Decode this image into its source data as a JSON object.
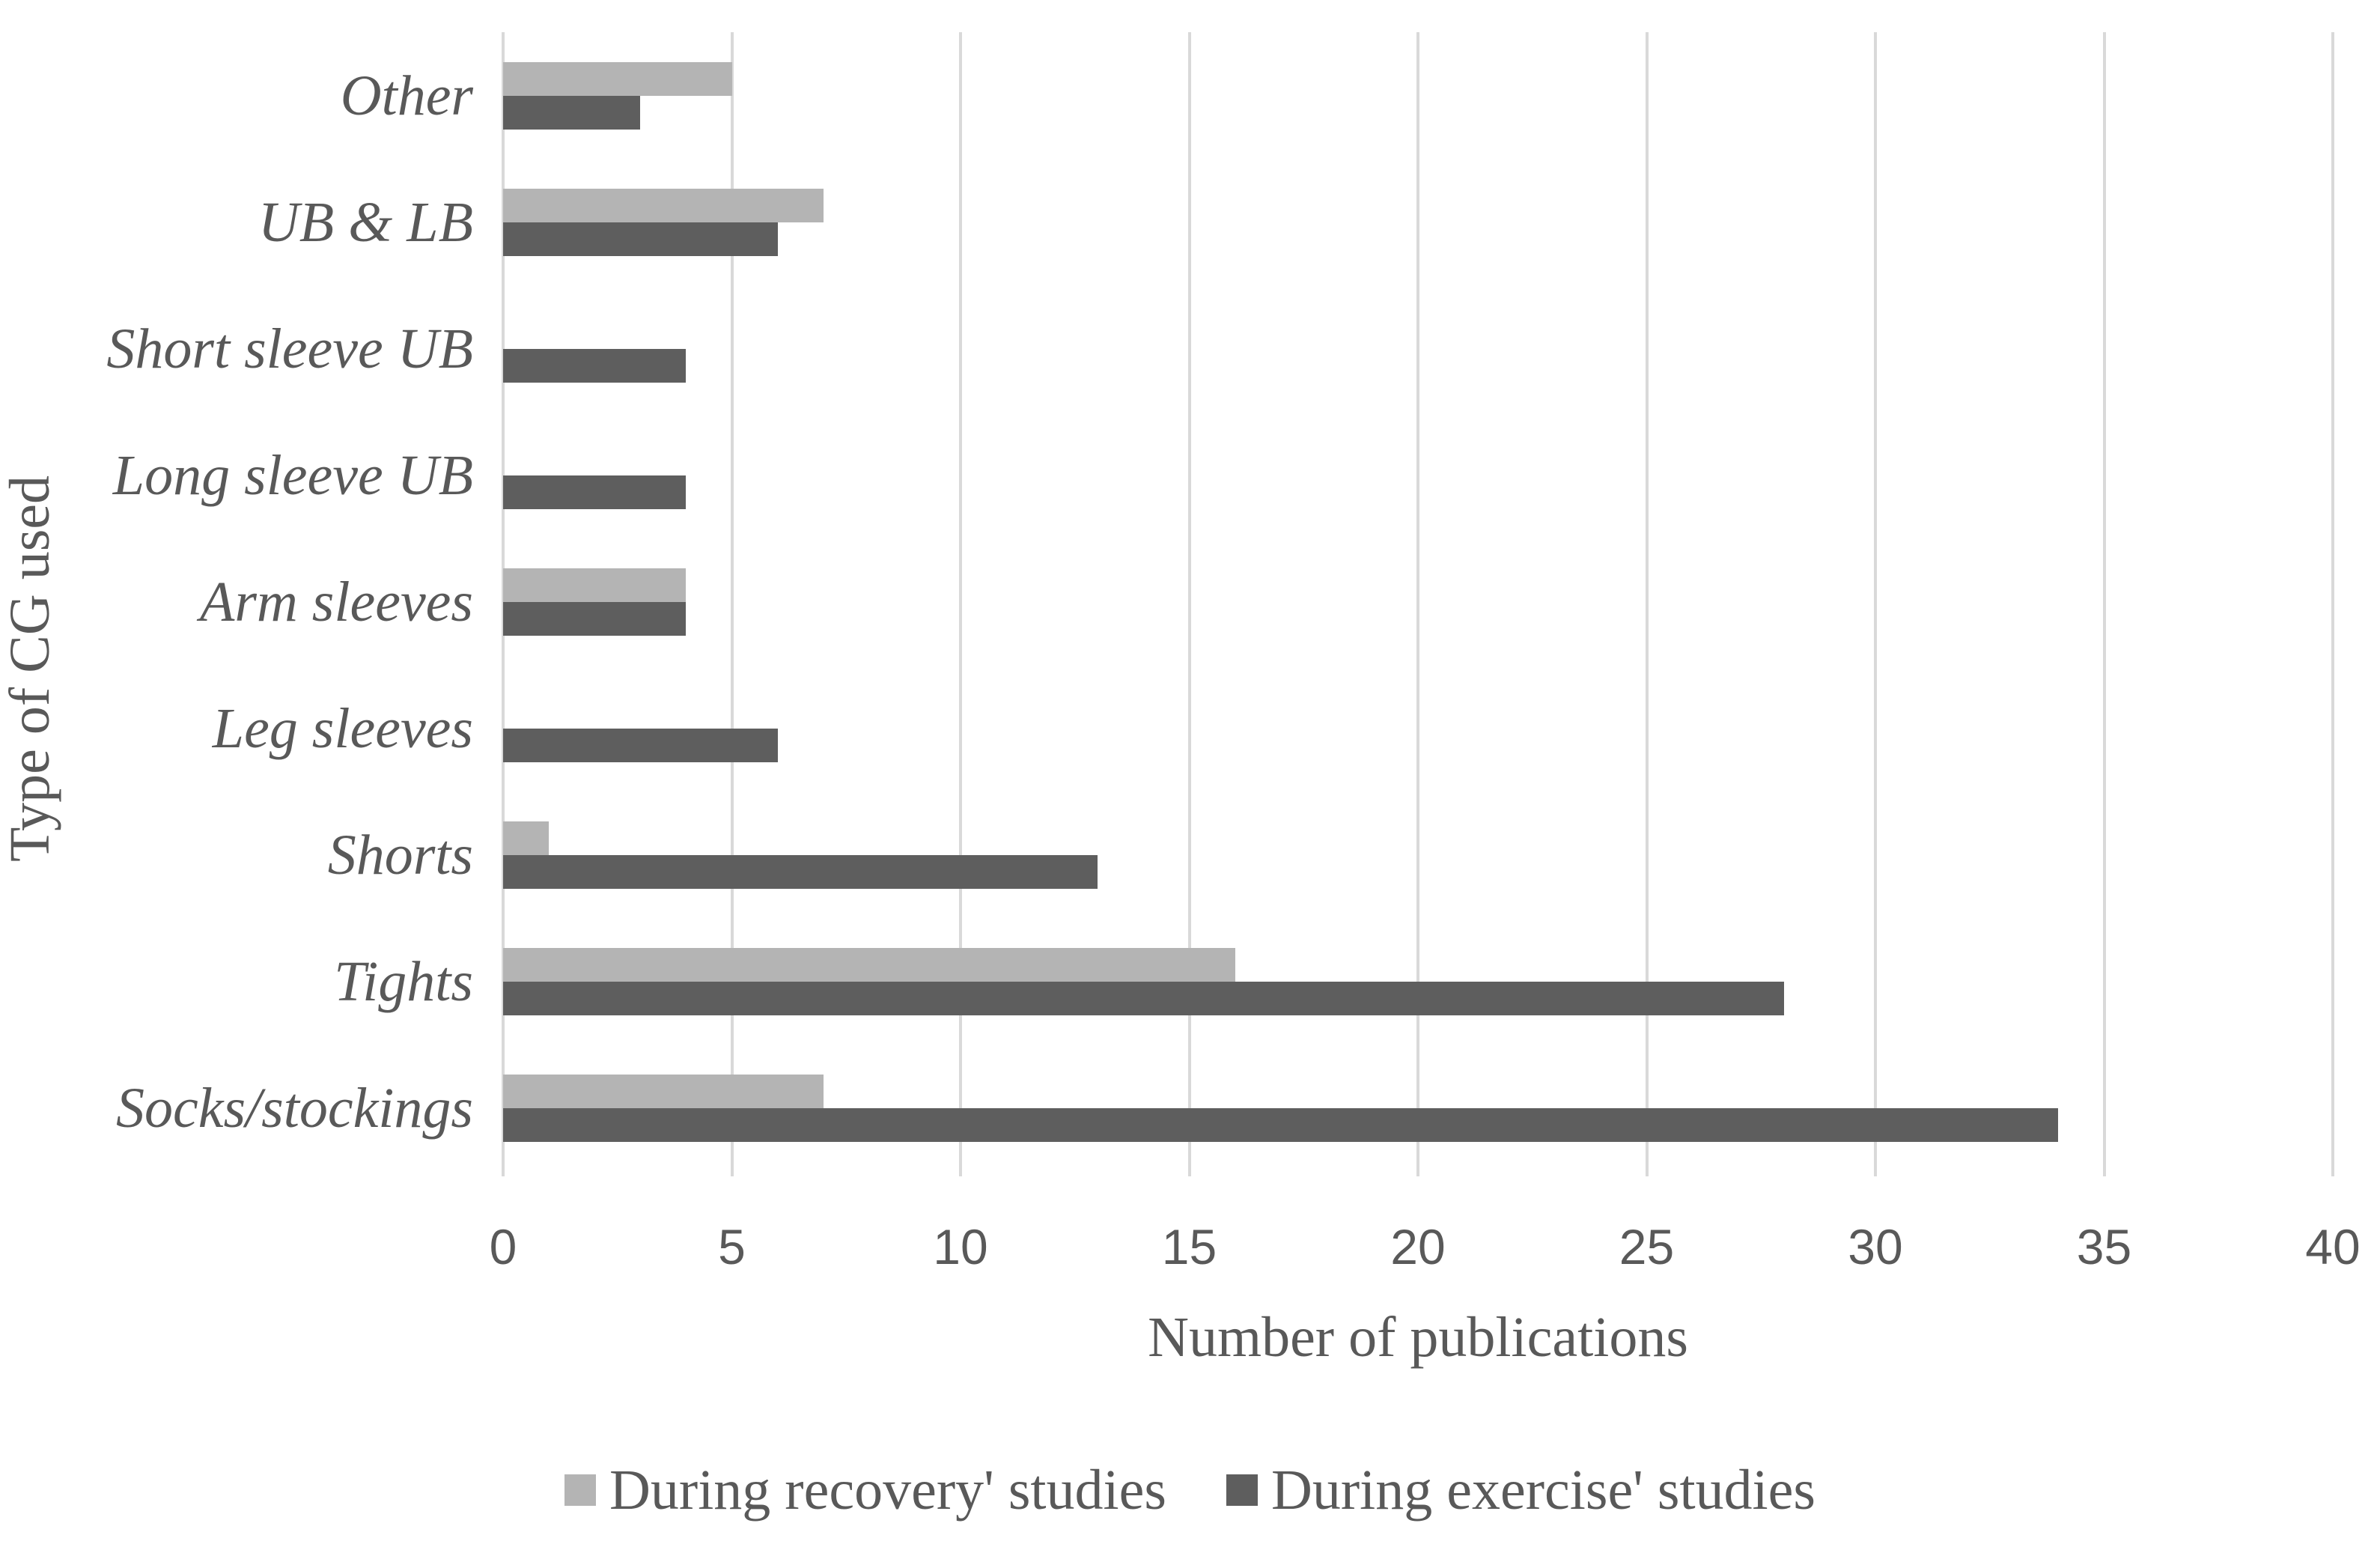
{
  "chart_data": {
    "type": "bar",
    "orientation": "horizontal",
    "title": "",
    "xlabel": "Number of publications",
    "ylabel": "Type of CG used",
    "categories_top_to_bottom": [
      "Other",
      "UB & LB",
      "Short sleeve UB",
      "Long sleeve UB",
      "Arm sleeves",
      "Leg sleeves",
      "Shorts",
      "Tights",
      "Socks/stockings"
    ],
    "series": [
      {
        "name": "During recovery' studies",
        "color": "#b4b4b4",
        "values": [
          5,
          7,
          0,
          0,
          4,
          0,
          1,
          16,
          7
        ]
      },
      {
        "name": "During exercise' studies",
        "color": "#5e5e5e",
        "values": [
          3,
          6,
          4,
          4,
          4,
          6,
          13,
          28,
          34
        ]
      }
    ],
    "xlim": [
      0,
      40
    ],
    "xticks": [
      0,
      5,
      10,
      15,
      20,
      25,
      30,
      35,
      40
    ],
    "grid": true,
    "gridline_color": "#d9d9d9",
    "text_color": "#595959",
    "legend_position": "bottom"
  }
}
